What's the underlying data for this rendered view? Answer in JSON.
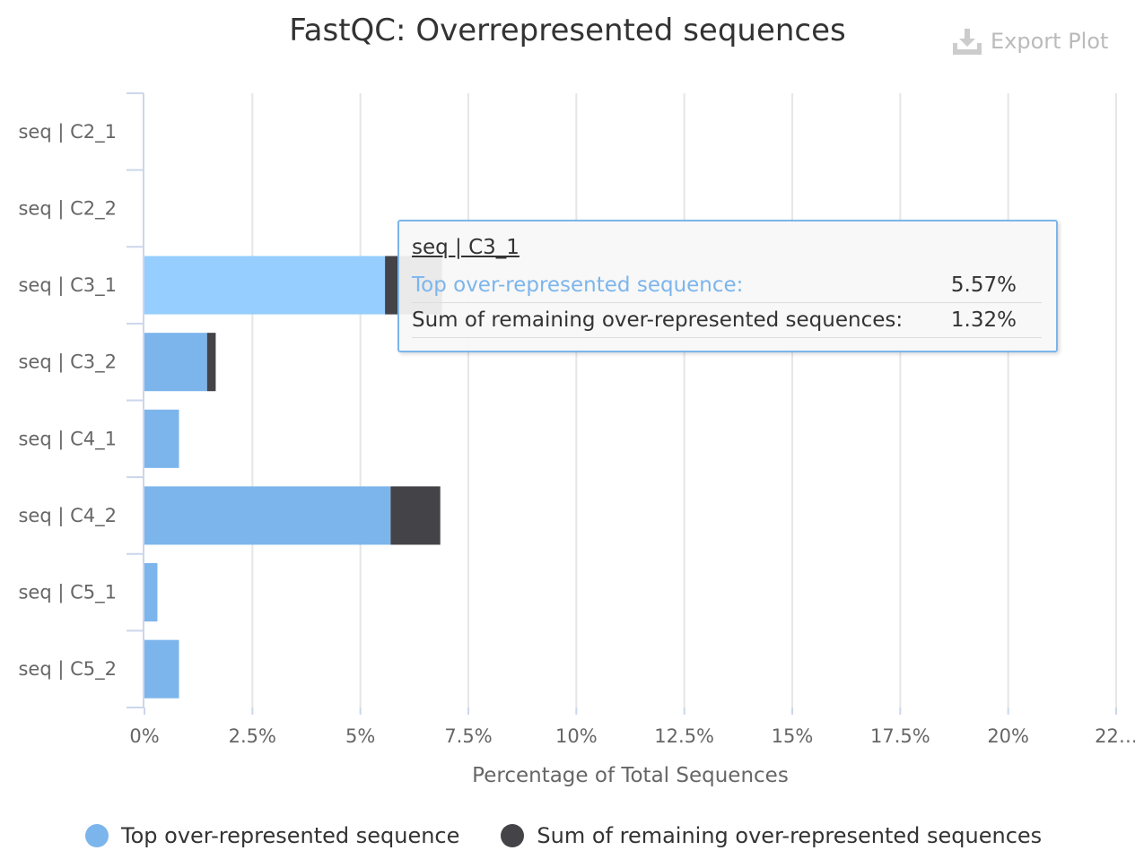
{
  "title": "FastQC: Overrepresented sequences",
  "export_label": "Export Plot",
  "colors": {
    "top": "#7cb5ec",
    "top_highlight": "#95ceff",
    "remaining": "#434348",
    "grid": "#e6e6e6",
    "axis": "#ccd6eb"
  },
  "chart_data": {
    "type": "bar",
    "orientation": "horizontal",
    "stacked": true,
    "categories": [
      "seq | C2_1",
      "seq | C2_2",
      "seq | C3_1",
      "seq | C3_2",
      "seq | C4_1",
      "seq | C4_2",
      "seq | C5_1",
      "seq | C5_2"
    ],
    "series": [
      {
        "name": "Top over-represented sequence",
        "values": [
          0,
          0,
          5.57,
          1.45,
          0.8,
          5.7,
          0.3,
          0.8
        ]
      },
      {
        "name": "Sum of remaining over-represented sequences",
        "values": [
          0,
          0,
          1.32,
          0.2,
          0,
          1.15,
          0,
          0
        ]
      }
    ],
    "xlabel": "Percentage of Total Sequences",
    "xlim": [
      0,
      22.5
    ],
    "x_ticks": [
      0,
      2.5,
      5,
      7.5,
      10,
      12.5,
      15,
      17.5,
      20,
      22.5
    ],
    "x_tick_labels": [
      "0%",
      "2.5%",
      "5%",
      "7.5%",
      "10%",
      "12.5%",
      "15%",
      "17.5%",
      "20%",
      "22…"
    ],
    "grid": true,
    "legend_position": "bottom",
    "highlighted_category_index": 2
  },
  "tooltip": {
    "header": "seq | C3_1",
    "rows": [
      {
        "name": "Top over-represented sequence:",
        "value": "5.57%"
      },
      {
        "name": "Sum of remaining over-represented sequences:",
        "value": "1.32%"
      }
    ]
  }
}
